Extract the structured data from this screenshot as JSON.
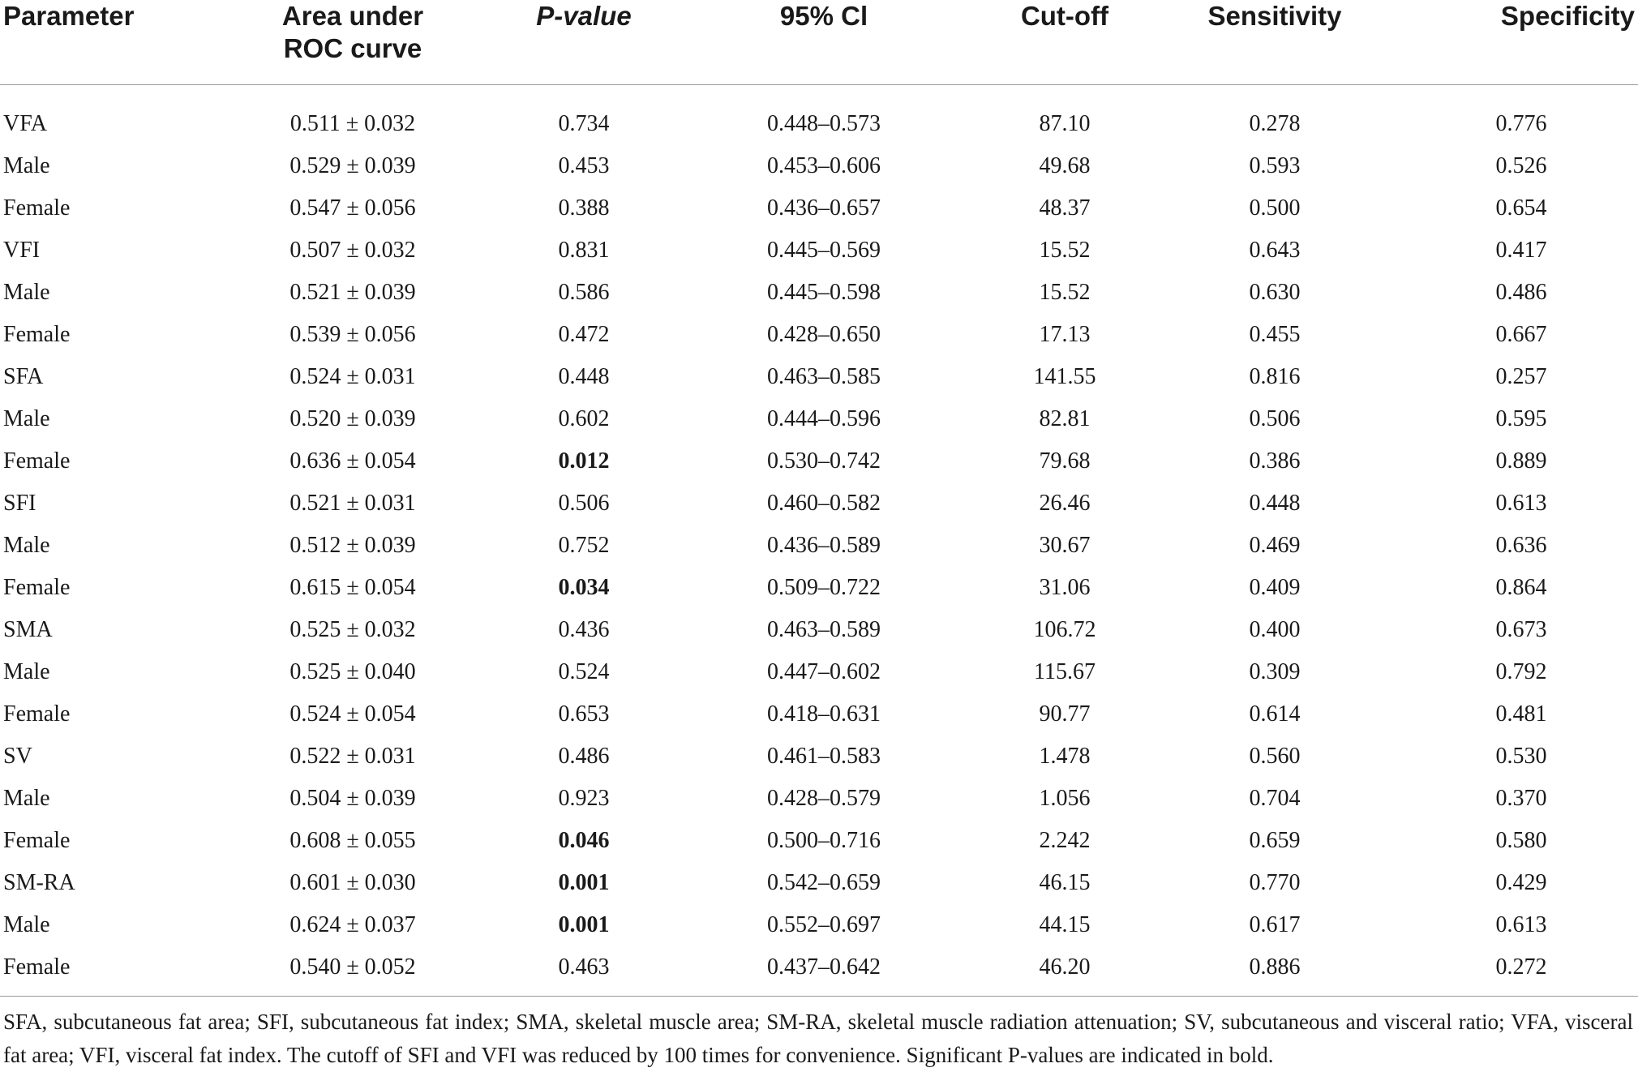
{
  "headers": {
    "parameter": "Parameter",
    "auc_line1": "Area under",
    "auc_line2": "ROC curve",
    "pvalue": "P-value",
    "ci": "95% Cl",
    "cutoff": "Cut-off",
    "sensitivity": "Sensitivity",
    "specificity": "Specificity"
  },
  "rows": [
    {
      "parameter": "VFA",
      "auc": "0.511 ± 0.032",
      "p": "0.734",
      "p_bold": false,
      "ci": "0.448–0.573",
      "cutoff": "87.10",
      "sens": "0.278",
      "spec": "0.776"
    },
    {
      "parameter": "Male",
      "auc": "0.529 ± 0.039",
      "p": "0.453",
      "p_bold": false,
      "ci": "0.453–0.606",
      "cutoff": "49.68",
      "sens": "0.593",
      "spec": "0.526"
    },
    {
      "parameter": "Female",
      "auc": "0.547 ± 0.056",
      "p": "0.388",
      "p_bold": false,
      "ci": "0.436–0.657",
      "cutoff": "48.37",
      "sens": "0.500",
      "spec": "0.654"
    },
    {
      "parameter": "VFI",
      "auc": "0.507 ± 0.032",
      "p": "0.831",
      "p_bold": false,
      "ci": "0.445–0.569",
      "cutoff": "15.52",
      "sens": "0.643",
      "spec": "0.417"
    },
    {
      "parameter": "Male",
      "auc": "0.521 ± 0.039",
      "p": "0.586",
      "p_bold": false,
      "ci": "0.445–0.598",
      "cutoff": "15.52",
      "sens": "0.630",
      "spec": "0.486"
    },
    {
      "parameter": "Female",
      "auc": "0.539 ± 0.056",
      "p": "0.472",
      "p_bold": false,
      "ci": "0.428–0.650",
      "cutoff": "17.13",
      "sens": "0.455",
      "spec": "0.667"
    },
    {
      "parameter": "SFA",
      "auc": "0.524 ± 0.031",
      "p": "0.448",
      "p_bold": false,
      "ci": "0.463–0.585",
      "cutoff": "141.55",
      "sens": "0.816",
      "spec": "0.257"
    },
    {
      "parameter": "Male",
      "auc": "0.520 ± 0.039",
      "p": "0.602",
      "p_bold": false,
      "ci": "0.444–0.596",
      "cutoff": "82.81",
      "sens": "0.506",
      "spec": "0.595"
    },
    {
      "parameter": "Female",
      "auc": "0.636 ± 0.054",
      "p": "0.012",
      "p_bold": true,
      "ci": "0.530–0.742",
      "cutoff": "79.68",
      "sens": "0.386",
      "spec": "0.889"
    },
    {
      "parameter": "SFI",
      "auc": "0.521 ± 0.031",
      "p": "0.506",
      "p_bold": false,
      "ci": "0.460–0.582",
      "cutoff": "26.46",
      "sens": "0.448",
      "spec": "0.613"
    },
    {
      "parameter": "Male",
      "auc": "0.512 ± 0.039",
      "p": "0.752",
      "p_bold": false,
      "ci": "0.436–0.589",
      "cutoff": "30.67",
      "sens": "0.469",
      "spec": "0.636"
    },
    {
      "parameter": "Female",
      "auc": "0.615 ± 0.054",
      "p": "0.034",
      "p_bold": true,
      "ci": "0.509–0.722",
      "cutoff": "31.06",
      "sens": "0.409",
      "spec": "0.864"
    },
    {
      "parameter": "SMA",
      "auc": "0.525 ± 0.032",
      "p": "0.436",
      "p_bold": false,
      "ci": "0.463–0.589",
      "cutoff": "106.72",
      "sens": "0.400",
      "spec": "0.673"
    },
    {
      "parameter": "Male",
      "auc": "0.525 ± 0.040",
      "p": "0.524",
      "p_bold": false,
      "ci": "0.447–0.602",
      "cutoff": "115.67",
      "sens": "0.309",
      "spec": "0.792"
    },
    {
      "parameter": "Female",
      "auc": "0.524 ± 0.054",
      "p": "0.653",
      "p_bold": false,
      "ci": "0.418–0.631",
      "cutoff": "90.77",
      "sens": "0.614",
      "spec": "0.481"
    },
    {
      "parameter": "SV",
      "auc": "0.522 ± 0.031",
      "p": "0.486",
      "p_bold": false,
      "ci": "0.461–0.583",
      "cutoff": "1.478",
      "sens": "0.560",
      "spec": "0.530"
    },
    {
      "parameter": "Male",
      "auc": "0.504 ± 0.039",
      "p": "0.923",
      "p_bold": false,
      "ci": "0.428–0.579",
      "cutoff": "1.056",
      "sens": "0.704",
      "spec": "0.370"
    },
    {
      "parameter": "Female",
      "auc": "0.608 ± 0.055",
      "p": "0.046",
      "p_bold": true,
      "ci": "0.500–0.716",
      "cutoff": "2.242",
      "sens": "0.659",
      "spec": "0.580"
    },
    {
      "parameter": "SM-RA",
      "auc": "0.601 ± 0.030",
      "p": "0.001",
      "p_bold": true,
      "ci": "0.542–0.659",
      "cutoff": "46.15",
      "sens": "0.770",
      "spec": "0.429"
    },
    {
      "parameter": "Male",
      "auc": "0.624 ± 0.037",
      "p": "0.001",
      "p_bold": true,
      "ci": "0.552–0.697",
      "cutoff": "44.15",
      "sens": "0.617",
      "spec": "0.613"
    },
    {
      "parameter": "Female",
      "auc": "0.540 ± 0.052",
      "p": "0.463",
      "p_bold": false,
      "ci": "0.437–0.642",
      "cutoff": "46.20",
      "sens": "0.886",
      "spec": "0.272"
    }
  ],
  "footnote": "SFA, subcutaneous fat area; SFI, subcutaneous fat index; SMA, skeletal muscle area; SM-RA, skeletal muscle radiation attenuation; SV, subcutaneous and visceral ratio; VFA, visceral fat area; VFI, visceral fat index. The cutoff of SFI and VFI was reduced by 100 times for convenience. Significant P-values are indicated in bold."
}
